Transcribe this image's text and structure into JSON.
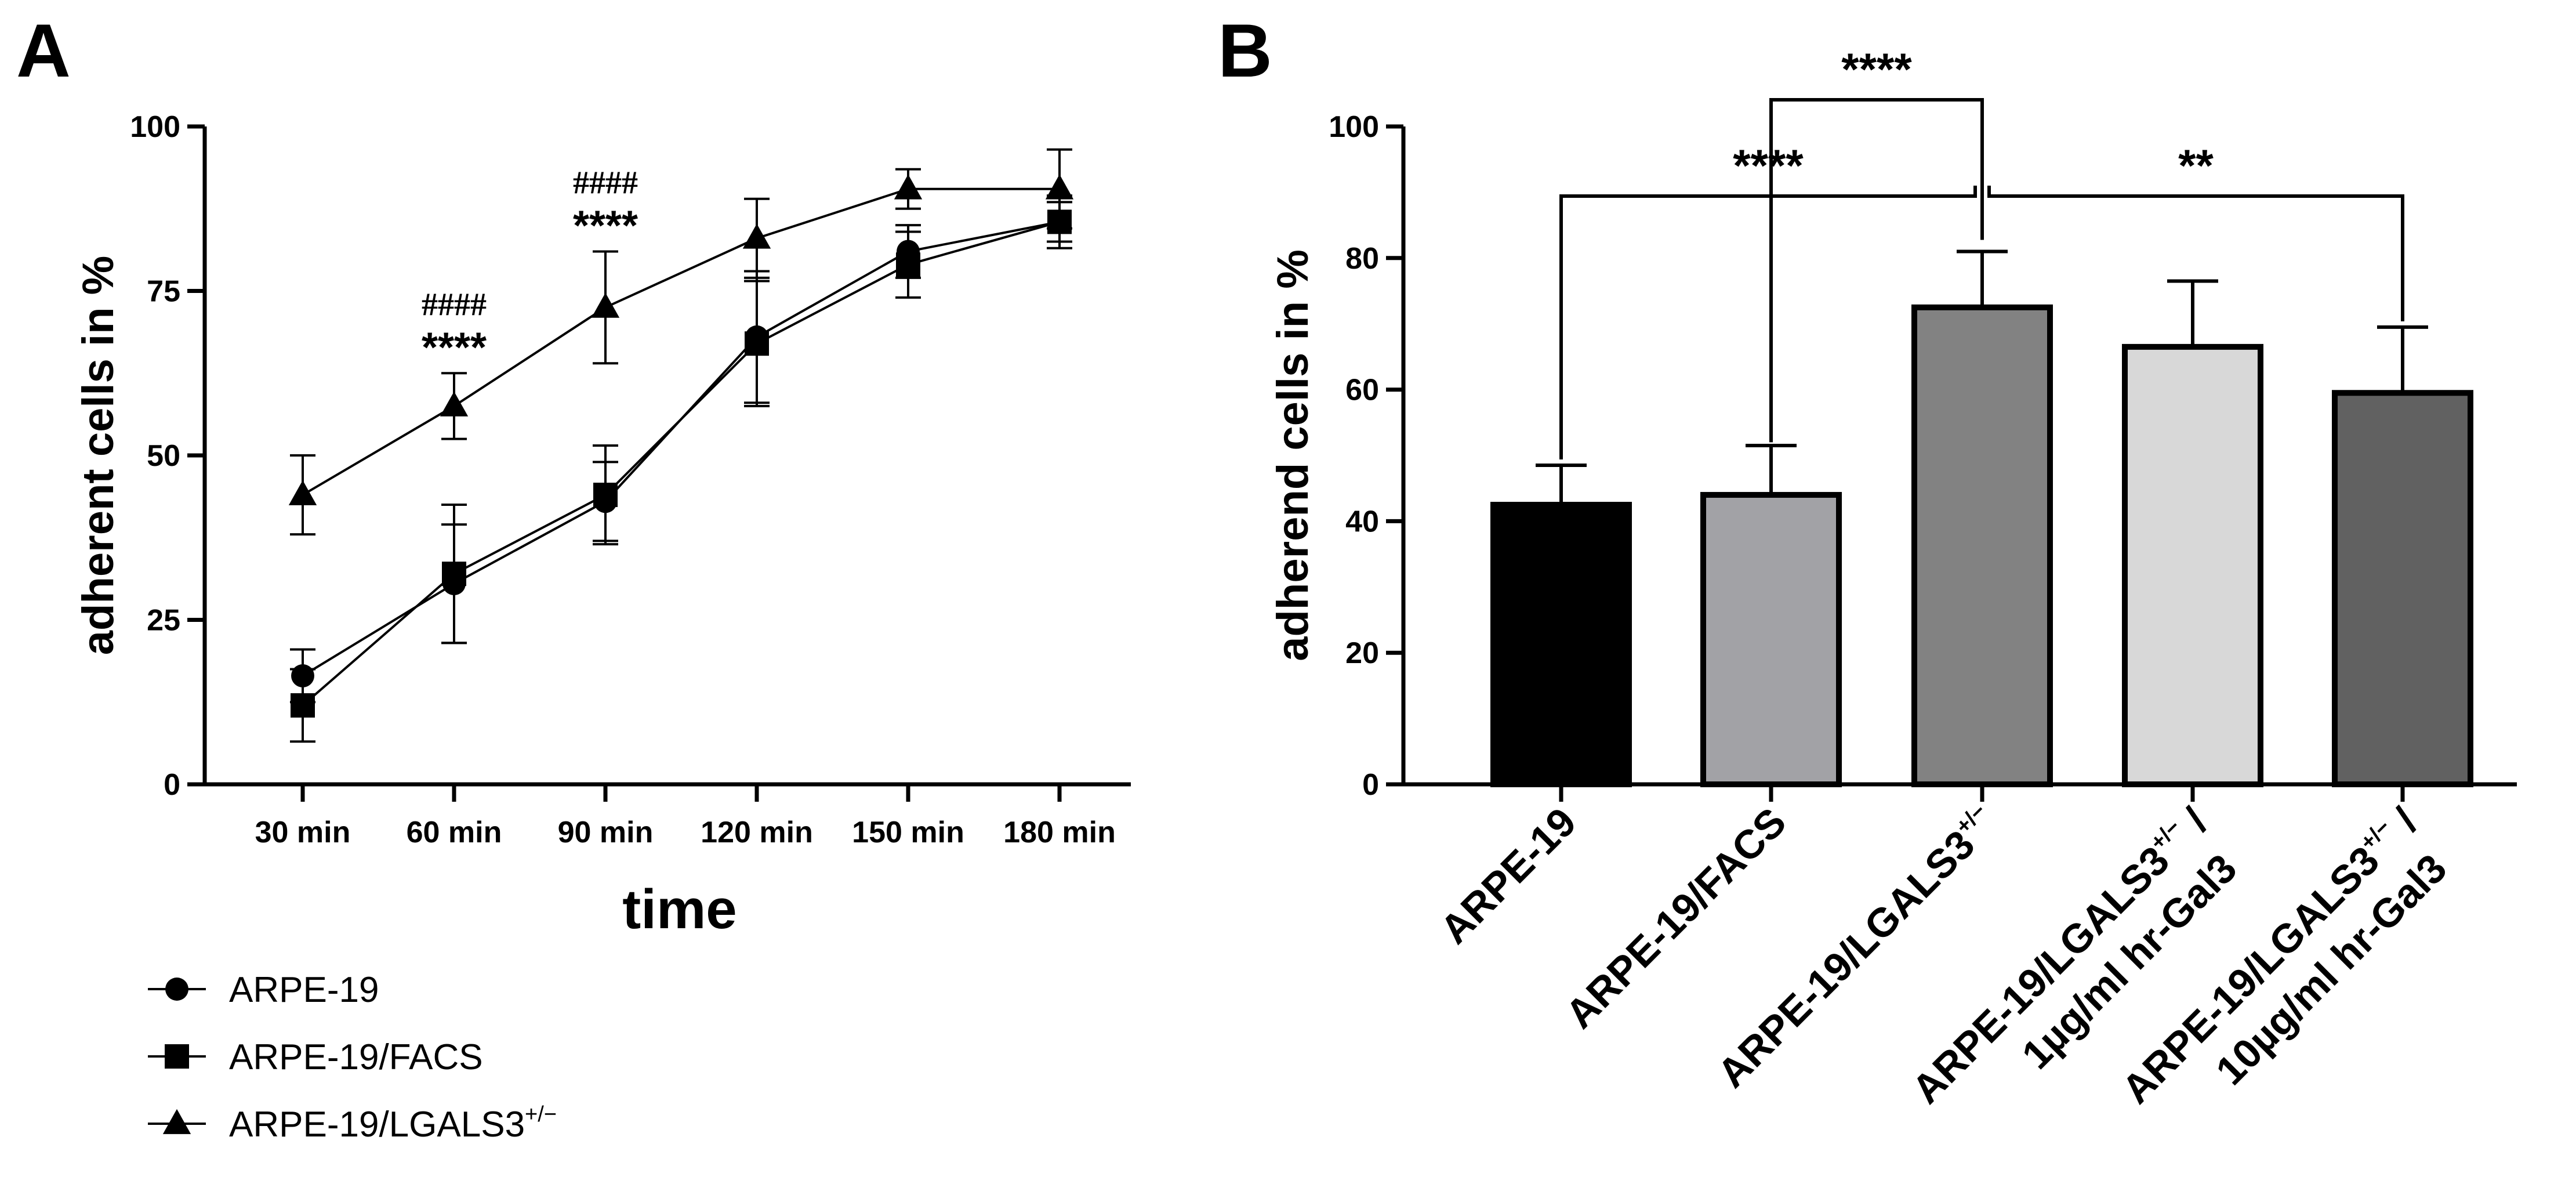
{
  "chart_data": [
    {
      "panel": "A",
      "type": "line",
      "xlabel": "time",
      "ylabel": "adherent cells in %",
      "ylim": [
        0,
        100
      ],
      "yticks": [
        0,
        25,
        50,
        75,
        100
      ],
      "categories": [
        "30 min",
        "60 min",
        "90 min",
        "120 min",
        "150 min",
        "180 min"
      ],
      "series": [
        {
          "name": "ARPE-19",
          "superscript": "",
          "marker": "circle",
          "values": [
            16.5,
            30.5,
            43,
            68,
            81,
            85.5
          ],
          "errors": [
            4,
            9,
            6,
            10,
            4,
            3
          ]
        },
        {
          "name": "ARPE-19/FACS",
          "superscript": "",
          "marker": "square",
          "values": [
            12,
            32,
            44,
            67,
            79,
            85.5
          ],
          "errors": [
            5.5,
            10.5,
            7.5,
            9.5,
            5,
            4
          ]
        },
        {
          "name": "ARPE-19/LGALS3",
          "superscript": "+/−",
          "marker": "triangle",
          "values": [
            44,
            57.5,
            72.5,
            83,
            90.5,
            90.5
          ],
          "errors": [
            6,
            5,
            8.5,
            6,
            3,
            6
          ]
        }
      ],
      "annotations": [
        {
          "category": "60 min",
          "stars": "****",
          "hashes": "####"
        },
        {
          "category": "90 min",
          "stars": "****",
          "hashes": "####"
        }
      ],
      "legend_position": "bottom-left"
    },
    {
      "panel": "B",
      "type": "bar",
      "ylabel": "adherend cells in %",
      "ylim": [
        0,
        100
      ],
      "yticks": [
        0,
        20,
        40,
        60,
        80,
        100
      ],
      "categories": [
        {
          "line1": "ARPE-19",
          "sup1": "",
          "line1b": "",
          "line2": ""
        },
        {
          "line1": "ARPE-19/FACS",
          "sup1": "",
          "line1b": "",
          "line2": ""
        },
        {
          "line1": "ARPE-19/LGALS3",
          "sup1": "+/−",
          "line1b": "",
          "line2": ""
        },
        {
          "line1": "ARPE-19/LGALS3",
          "sup1": "+/−",
          "line1b": " /",
          "line2": "1µg/ml hr-Gal3"
        },
        {
          "line1": "ARPE-19/LGALS3",
          "sup1": "+/−",
          "line1b": " /",
          "line2": "10µg/ml hr-Gal3"
        }
      ],
      "values": [
        42.5,
        44,
        72.5,
        66.5,
        59.5
      ],
      "errors": [
        6,
        7.5,
        8.5,
        10,
        10
      ],
      "colors": [
        "#000000",
        "#a2a2a6",
        "#828282",
        "#d8d8d8",
        "#616161"
      ],
      "significance": [
        {
          "from": 2,
          "to": 1,
          "label": "****"
        },
        {
          "from": 0,
          "to": 2,
          "label": "****"
        },
        {
          "from": 2,
          "to": 4,
          "label": "**"
        }
      ]
    }
  ],
  "labels": {
    "panel_a": "A",
    "panel_b": "B"
  }
}
